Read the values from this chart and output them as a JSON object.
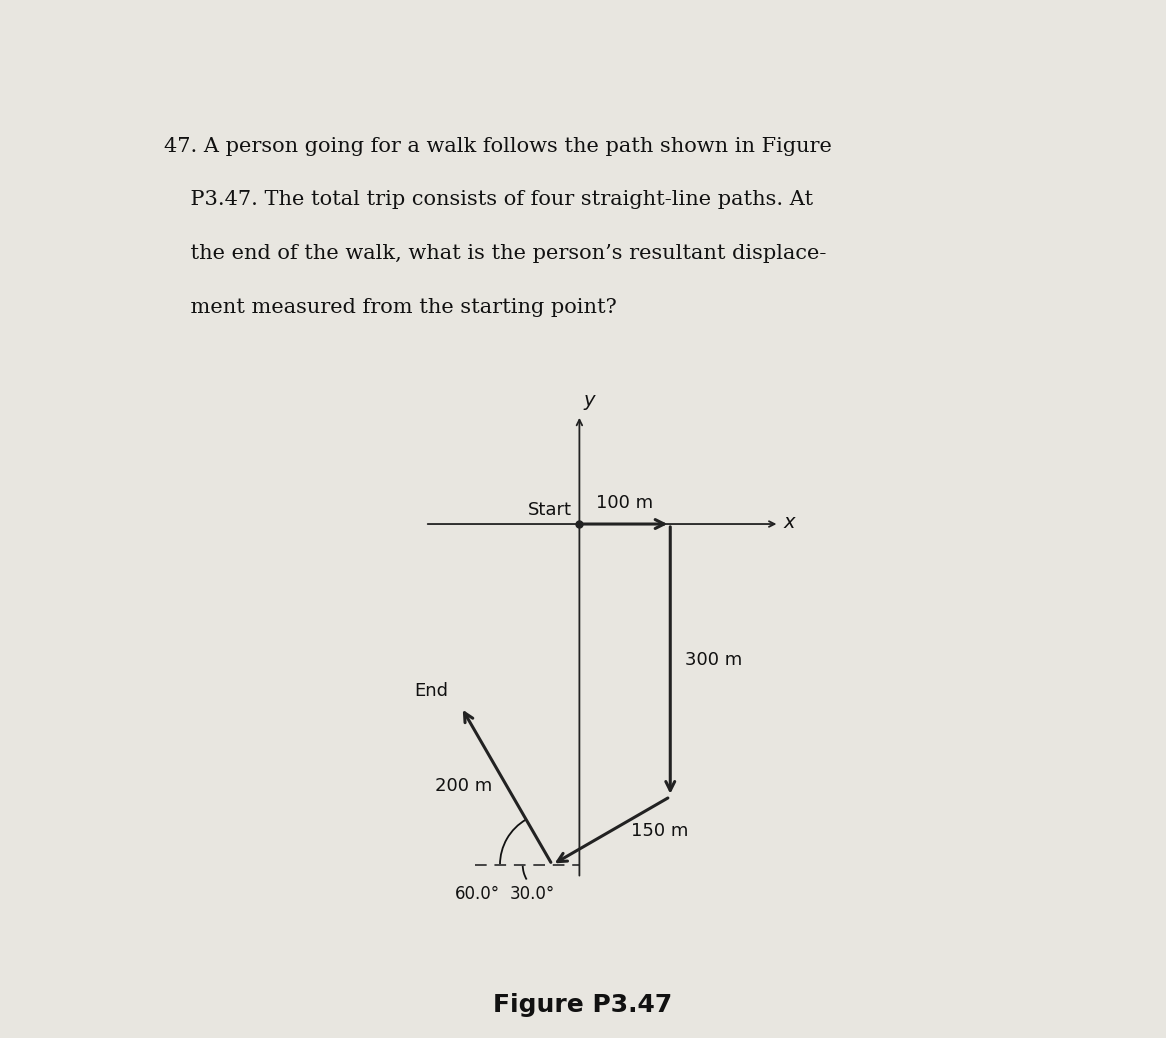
{
  "title": "Figure P3.47",
  "title_fontsize": 18,
  "title_fontweight": "bold",
  "background_color": "#e8e6e0",
  "paragraph_lines": [
    "47. A person going for a walk follows the path shown in Figure",
    "    P3.47. The total trip consists of four straight-line paths. At",
    "    the end of the walk, what is the person’s resultant displace-",
    "    ment measured from the starting point?"
  ],
  "origin_label": "Start",
  "end_label": "End",
  "axis_label_x": "x",
  "axis_label_y": "y",
  "label_100m": "100 m",
  "label_300m": "300 m",
  "label_150m": "150 m",
  "label_200m": "200 m",
  "angle1_label": "30.0°",
  "angle2_label": "60.0°",
  "arrow_color": "#222222",
  "axis_color": "#222222",
  "dashes_color": "#444444",
  "text_color": "#111111",
  "para_fontsize": 15,
  "diagram_fontsize": 13
}
